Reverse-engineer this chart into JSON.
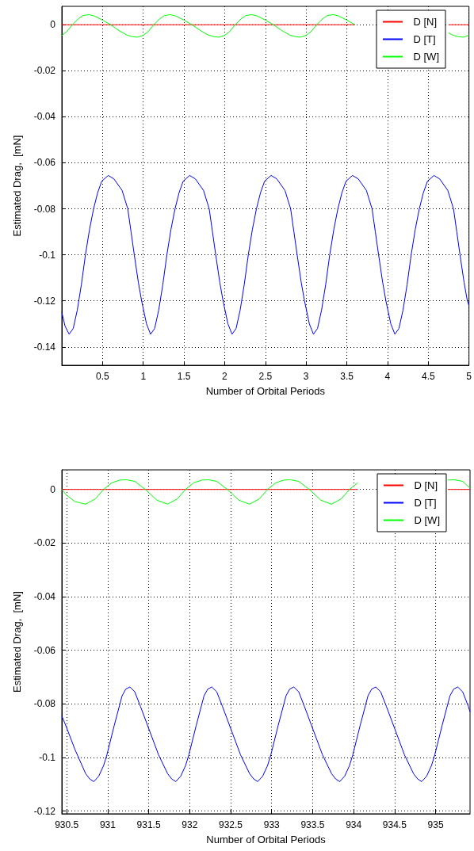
{
  "chart_data": [
    {
      "type": "line",
      "xlabel": "Number of Orbital Periods",
      "ylabel": "Estimated Drag,  [mN]",
      "xlim": [
        0,
        5
      ],
      "xticks": [
        0.5,
        1,
        1.5,
        2,
        2.5,
        3,
        3.5,
        4,
        4.5,
        5
      ],
      "ylim": [
        -0.148,
        0.008
      ],
      "yticks": [
        0,
        -0.02,
        -0.04,
        -0.06,
        -0.08,
        -0.1,
        -0.12,
        -0.14
      ],
      "grid": true,
      "legend": "top right",
      "marker": "none",
      "line_style": "solid",
      "series": [
        {
          "name": "D [N]",
          "color": "#ff0000",
          "x": [
            0,
            3.6,
            3.65,
            4.75,
            5
          ],
          "values": [
            0,
            0,
            null,
            0,
            0
          ]
        },
        {
          "name": "D [T]",
          "color": "#0000ff",
          "x": [
            0,
            0.04,
            0.09,
            0.14,
            0.19,
            0.24,
            0.29,
            0.34,
            0.39,
            0.44,
            0.49,
            0.57,
            0.64,
            0.74,
            0.81,
            0.85,
            0.89,
            0.94,
            0.98,
            1.04,
            1.09,
            1.14,
            1.19,
            1.24,
            1.29,
            1.34,
            1.39,
            1.44,
            1.49,
            1.57,
            1.64,
            1.74,
            1.81,
            1.85,
            1.89,
            1.94,
            1.98,
            2.04,
            2.09,
            2.14,
            2.19,
            2.24,
            2.29,
            2.34,
            2.39,
            2.44,
            2.49,
            2.57,
            2.64,
            2.74,
            2.81,
            2.85,
            2.89,
            2.94,
            2.98,
            3.04,
            3.09,
            3.14,
            3.19,
            3.24,
            3.29,
            3.34,
            3.39,
            3.44,
            3.49,
            3.57,
            3.64,
            3.74,
            3.81,
            3.85,
            3.89,
            3.94,
            3.98,
            4.04,
            4.09,
            4.14,
            4.19,
            4.24,
            4.29,
            4.34,
            4.39,
            4.44,
            4.49,
            4.57,
            4.64,
            4.74,
            4.81,
            4.85,
            4.89,
            4.94,
            4.98,
            5
          ],
          "values": [
            -0.125,
            -0.131,
            -0.1345,
            -0.132,
            -0.124,
            -0.113,
            -0.1,
            -0.089,
            -0.08,
            -0.073,
            -0.068,
            -0.0655,
            -0.067,
            -0.072,
            -0.08,
            -0.09,
            -0.1,
            -0.112,
            -0.12,
            -0.13,
            -0.1345,
            -0.132,
            -0.124,
            -0.113,
            -0.1,
            -0.089,
            -0.08,
            -0.073,
            -0.068,
            -0.0655,
            -0.067,
            -0.072,
            -0.08,
            -0.09,
            -0.1,
            -0.112,
            -0.12,
            -0.13,
            -0.1345,
            -0.132,
            -0.124,
            -0.113,
            -0.1,
            -0.089,
            -0.08,
            -0.073,
            -0.068,
            -0.0655,
            -0.067,
            -0.072,
            -0.08,
            -0.09,
            -0.1,
            -0.112,
            -0.12,
            -0.13,
            -0.1345,
            -0.132,
            -0.124,
            -0.113,
            -0.1,
            -0.089,
            -0.08,
            -0.073,
            -0.068,
            -0.0655,
            -0.067,
            -0.072,
            -0.08,
            -0.09,
            -0.1,
            -0.112,
            -0.12,
            -0.13,
            -0.1345,
            -0.132,
            -0.124,
            -0.113,
            -0.1,
            -0.089,
            -0.08,
            -0.073,
            -0.068,
            -0.0655,
            -0.067,
            -0.072,
            -0.08,
            -0.09,
            -0.1,
            -0.112,
            -0.12,
            -0.122
          ]
        },
        {
          "name": "D [W]",
          "color": "#00ff00",
          "x": [
            0,
            0.06,
            0.13,
            0.2,
            0.26,
            0.33,
            0.4,
            0.5,
            0.6,
            0.7,
            0.8,
            0.87,
            0.93,
            1,
            1.06,
            1.13,
            1.2,
            1.26,
            1.33,
            1.4,
            1.5,
            1.6,
            1.7,
            1.8,
            1.87,
            1.93,
            2,
            2.06,
            2.13,
            2.2,
            2.26,
            2.33,
            2.4,
            2.5,
            2.6,
            2.7,
            2.8,
            2.87,
            2.93,
            3,
            3.06,
            3.13,
            3.2,
            3.26,
            3.33,
            3.4,
            3.5,
            3.6,
            3.65,
            4.75,
            4.8,
            4.87,
            4.93,
            5
          ],
          "values": [
            -0.0046,
            -0.003,
            0,
            0.0025,
            0.004,
            0.0044,
            0.0038,
            0.002,
            0,
            -0.0025,
            -0.0045,
            -0.0052,
            -0.0054,
            -0.0046,
            -0.003,
            0,
            0.0025,
            0.004,
            0.0044,
            0.0038,
            0.002,
            0,
            -0.0025,
            -0.0045,
            -0.0052,
            -0.0054,
            -0.0046,
            -0.003,
            0,
            0.0025,
            0.004,
            0.0044,
            0.0038,
            0.002,
            0,
            -0.0025,
            -0.0045,
            -0.0052,
            -0.0054,
            -0.0046,
            -0.003,
            0,
            0.0025,
            0.004,
            0.0044,
            0.0038,
            0.002,
            0,
            null,
            -0.0035,
            -0.0045,
            -0.0052,
            -0.0054,
            -0.0046
          ]
        }
      ]
    },
    {
      "type": "line",
      "xlabel": "Number of Orbital Periods",
      "ylabel": "Estimated Drag,  [mN]",
      "xlim": [
        930.44,
        935.42
      ],
      "xticks": [
        930.5,
        931,
        931.5,
        932,
        932.5,
        933,
        933.5,
        934,
        934.5,
        935
      ],
      "ylim": [
        -0.121,
        0.0073
      ],
      "yticks": [
        0,
        -0.02,
        -0.04,
        -0.06,
        -0.08,
        -0.1,
        -0.12
      ],
      "grid": true,
      "legend": "top right",
      "marker": "none",
      "line_style": "solid",
      "series": [
        {
          "name": "D [N]",
          "color": "#ff0000",
          "x": [
            930.44,
            934.05,
            934.07,
            935.15,
            935.42
          ],
          "values": [
            0,
            0,
            null,
            0,
            0
          ]
        },
        {
          "name": "D [T]",
          "color": "#0000ff",
          "x": [
            930.44,
            930.5,
            930.6,
            930.73,
            930.78,
            930.83,
            930.89,
            930.95,
            930.99,
            931.08,
            931.175,
            931.22,
            931.27,
            931.33,
            931.4,
            931.51,
            931.62,
            931.73,
            931.78,
            931.83,
            931.89,
            931.95,
            931.99,
            932.08,
            932.175,
            932.22,
            932.27,
            932.33,
            932.4,
            932.51,
            932.62,
            932.73,
            932.78,
            932.83,
            932.89,
            932.95,
            932.99,
            933.08,
            933.175,
            933.22,
            933.27,
            933.33,
            933.4,
            933.51,
            933.62,
            933.73,
            933.78,
            933.83,
            933.89,
            933.95,
            933.99,
            934.08,
            934.175,
            934.22,
            934.27,
            934.33,
            934.4,
            934.51,
            934.62,
            934.73,
            934.78,
            934.83,
            934.89,
            934.95,
            934.99,
            935.08,
            935.175,
            935.22,
            935.27,
            935.33,
            935.4,
            935.42
          ],
          "values": [
            -0.0845,
            -0.089,
            -0.097,
            -0.106,
            -0.108,
            -0.109,
            -0.107,
            -0.103,
            -0.099,
            -0.088,
            -0.077,
            -0.0745,
            -0.0737,
            -0.0755,
            -0.081,
            -0.09,
            -0.099,
            -0.106,
            -0.108,
            -0.109,
            -0.107,
            -0.103,
            -0.099,
            -0.088,
            -0.077,
            -0.0745,
            -0.0737,
            -0.0755,
            -0.081,
            -0.09,
            -0.099,
            -0.106,
            -0.108,
            -0.109,
            -0.107,
            -0.103,
            -0.099,
            -0.088,
            -0.077,
            -0.0745,
            -0.0737,
            -0.0755,
            -0.081,
            -0.09,
            -0.099,
            -0.106,
            -0.108,
            -0.109,
            -0.107,
            -0.103,
            -0.099,
            -0.088,
            -0.077,
            -0.0745,
            -0.0737,
            -0.0755,
            -0.081,
            -0.09,
            -0.099,
            -0.106,
            -0.108,
            -0.109,
            -0.107,
            -0.103,
            -0.099,
            -0.088,
            -0.077,
            -0.0745,
            -0.0737,
            -0.0755,
            -0.081,
            -0.083
          ]
        },
        {
          "name": "D [W]",
          "color": "#00ff00",
          "x": [
            930.44,
            930.5,
            930.6,
            930.73,
            930.85,
            930.95,
            931.05,
            931.15,
            931.23,
            931.33,
            931.46,
            931.6,
            931.73,
            931.85,
            931.95,
            932.05,
            932.15,
            932.23,
            932.33,
            932.46,
            932.6,
            932.73,
            932.85,
            932.95,
            933.05,
            933.15,
            933.23,
            933.33,
            933.46,
            933.6,
            933.73,
            933.85,
            933.95,
            934.05,
            934.07,
            935.15,
            935.23,
            935.33,
            935.38,
            935.42
          ],
          "values": [
            0,
            -0.0022,
            -0.0045,
            -0.0055,
            -0.0035,
            0,
            0.0025,
            0.0035,
            0.0036,
            0.003,
            0,
            -0.004,
            -0.0055,
            -0.0035,
            0,
            0.0025,
            0.0035,
            0.0036,
            0.003,
            0,
            -0.004,
            -0.0055,
            -0.0035,
            0,
            0.0025,
            0.0035,
            0.0036,
            0.003,
            0,
            -0.004,
            -0.0055,
            -0.0035,
            0,
            0.0025,
            null,
            0.0035,
            0.0036,
            0.003,
            0.0016,
            0.0005
          ]
        }
      ]
    }
  ]
}
